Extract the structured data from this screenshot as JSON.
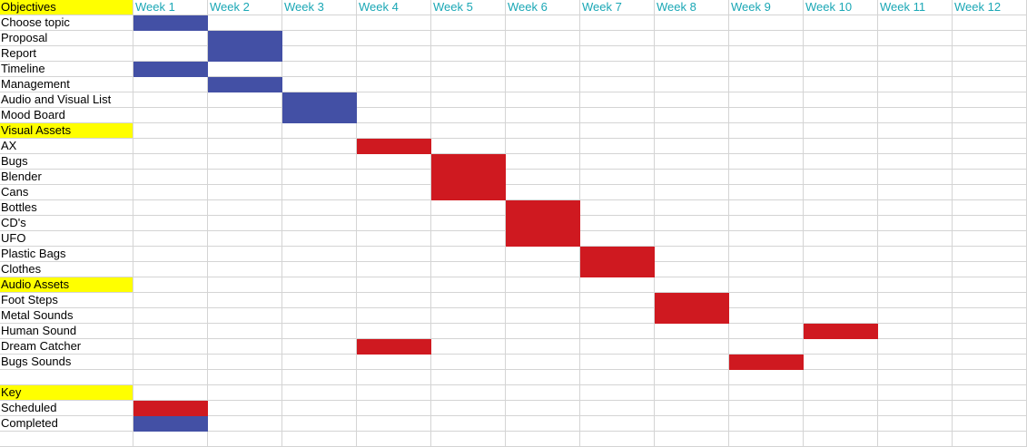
{
  "sheet": {
    "header_label": "Objectives",
    "weeks": [
      "Week 1",
      "Week 2",
      "Week 3",
      "Week 4",
      "Week 5",
      "Week 6",
      "Week 7",
      "Week 8",
      "Week 9",
      "Week 10",
      "Week 11",
      "Week 12"
    ],
    "rows": [
      {
        "label": "Choose topic"
      },
      {
        "label": "Proposal"
      },
      {
        "label": "Report"
      },
      {
        "label": "Timeline"
      },
      {
        "label": "Management"
      },
      {
        "label": "Audio and Visual List"
      },
      {
        "label": "Mood Board"
      },
      {
        "label": "Visual Assets",
        "section": true
      },
      {
        "label": "AX"
      },
      {
        "label": "Bugs"
      },
      {
        "label": "Blender"
      },
      {
        "label": "Cans"
      },
      {
        "label": "Bottles"
      },
      {
        "label": "CD's"
      },
      {
        "label": "UFO"
      },
      {
        "label": "Plastic Bags"
      },
      {
        "label": "Clothes"
      },
      {
        "label": "Audio Assets",
        "section": true
      },
      {
        "label": "Foot Steps"
      },
      {
        "label": "Metal Sounds"
      },
      {
        "label": "Human Sound"
      },
      {
        "label": "Dream Catcher"
      },
      {
        "label": "Bugs Sounds"
      },
      {
        "label": ""
      },
      {
        "label": "Key",
        "section": true
      },
      {
        "label": "Scheduled"
      },
      {
        "label": "Completed"
      },
      {
        "label": ""
      }
    ],
    "bars": [
      {
        "row": 1,
        "week_start": 1,
        "week_end": 1,
        "status": "completed"
      },
      {
        "row": 2,
        "week_start": 2,
        "week_end": 2,
        "status": "completed"
      },
      {
        "row": 3,
        "week_start": 2,
        "week_end": 2,
        "status": "completed"
      },
      {
        "row": 4,
        "week_start": 1,
        "week_end": 1,
        "status": "completed"
      },
      {
        "row": 5,
        "week_start": 2,
        "week_end": 2,
        "status": "completed"
      },
      {
        "row": 6,
        "week_start": 3,
        "week_end": 3,
        "status": "completed"
      },
      {
        "row": 7,
        "week_start": 3,
        "week_end": 3,
        "status": "completed"
      },
      {
        "row": 9,
        "week_start": 4,
        "week_end": 4,
        "status": "scheduled"
      },
      {
        "row": 10,
        "week_start": 5,
        "week_end": 5,
        "status": "scheduled"
      },
      {
        "row": 11,
        "week_start": 5,
        "week_end": 5,
        "status": "scheduled"
      },
      {
        "row": 12,
        "week_start": 5,
        "week_end": 5,
        "status": "scheduled"
      },
      {
        "row": 13,
        "week_start": 6,
        "week_end": 6,
        "status": "scheduled"
      },
      {
        "row": 14,
        "week_start": 6,
        "week_end": 6,
        "status": "scheduled"
      },
      {
        "row": 15,
        "week_start": 6,
        "week_end": 6,
        "status": "scheduled"
      },
      {
        "row": 16,
        "week_start": 7,
        "week_end": 7,
        "status": "scheduled"
      },
      {
        "row": 17,
        "week_start": 7,
        "week_end": 7,
        "status": "scheduled"
      },
      {
        "row": 19,
        "week_start": 8,
        "week_end": 8,
        "status": "scheduled"
      },
      {
        "row": 20,
        "week_start": 8,
        "week_end": 8,
        "status": "scheduled"
      },
      {
        "row": 21,
        "week_start": 10,
        "week_end": 10,
        "status": "scheduled"
      },
      {
        "row": 22,
        "week_start": 4,
        "week_end": 4,
        "status": "scheduled"
      },
      {
        "row": 23,
        "week_start": 9,
        "week_end": 9,
        "status": "scheduled"
      },
      {
        "row": 26,
        "week_start": 1,
        "week_end": 1,
        "status": "scheduled"
      },
      {
        "row": 27,
        "week_start": 1,
        "week_end": 1,
        "status": "completed"
      }
    ]
  },
  "colors": {
    "completed": "#4350a5",
    "scheduled": "#cf1920",
    "section_highlight": "#ffff00",
    "week_header_text": "#1aa7b5",
    "gridline": "#d4d4d4"
  }
}
